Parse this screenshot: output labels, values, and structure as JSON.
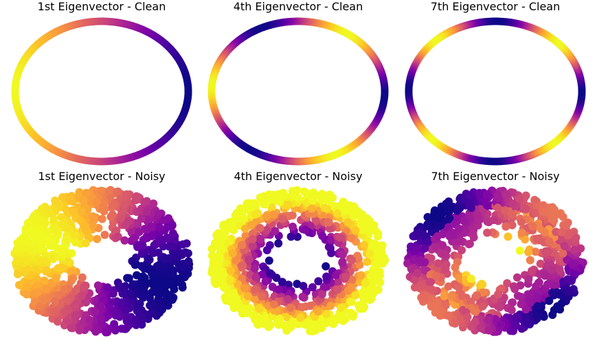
{
  "figure": {
    "background": "#ffffff",
    "colormap": "plasma"
  },
  "chart_data": [
    {
      "type": "scatter",
      "title": "1st Eigenvector - Clean",
      "dataset": "clean",
      "eigenvector_index": 1,
      "axes_visible": false,
      "pattern": {
        "kind": "angular",
        "harmonic": 1,
        "phase_deg": 180
      }
    },
    {
      "type": "scatter",
      "title": "4th Eigenvector - Clean",
      "dataset": "clean",
      "eigenvector_index": 4,
      "axes_visible": false,
      "pattern": {
        "kind": "angular",
        "harmonic": 3,
        "phase_deg": 170
      }
    },
    {
      "type": "scatter",
      "title": "7th Eigenvector - Clean",
      "dataset": "clean",
      "eigenvector_index": 7,
      "axes_visible": false,
      "pattern": {
        "kind": "angular",
        "harmonic": 4,
        "phase_deg": 180
      }
    },
    {
      "type": "scatter",
      "title": "1st Eigenvector - Noisy",
      "dataset": "noisy",
      "eigenvector_index": 1,
      "axes_visible": false,
      "pattern": {
        "kind": "angular",
        "harmonic": 1,
        "phase_deg": 155
      }
    },
    {
      "type": "scatter",
      "title": "4th Eigenvector - Noisy",
      "dataset": "noisy",
      "eigenvector_index": 4,
      "axes_visible": false,
      "pattern": {
        "kind": "radial",
        "low_at": "inner"
      }
    },
    {
      "type": "scatter",
      "title": "7th Eigenvector - Noisy",
      "dataset": "noisy",
      "eigenvector_index": 7,
      "axes_visible": false,
      "pattern": {
        "kind": "mixed",
        "harmonic": 2,
        "phase_deg": 90
      }
    }
  ]
}
